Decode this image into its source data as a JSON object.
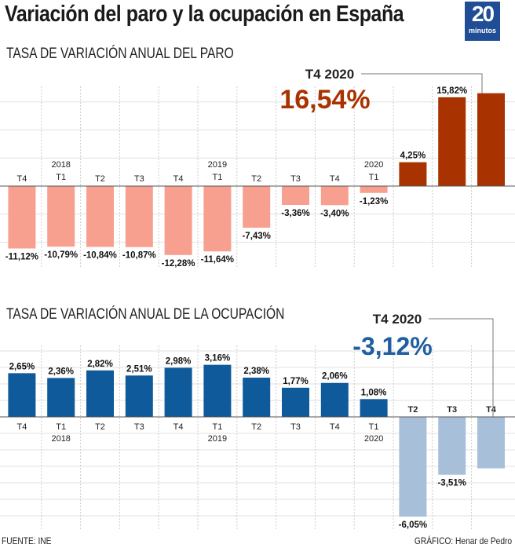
{
  "title": "Variación del paro y la ocupación en España",
  "logo": {
    "number": "20",
    "word": "minutos"
  },
  "footer": {
    "source": "FUENTE: INE",
    "credit": "GRÁFICO: Henar de Pedro"
  },
  "chart_data": [
    {
      "type": "bar",
      "title": "TASA DE VARIACIÓN ANUAL DEL PARO",
      "categories": [
        "T4",
        "T1 2018",
        "T2",
        "T3",
        "T4",
        "T1 2019",
        "T2",
        "T3",
        "T4",
        "T1 2020",
        "T2",
        "T3",
        "T4"
      ],
      "tick_labels": [
        [
          "T4",
          ""
        ],
        [
          "T1",
          "2018"
        ],
        [
          "T2",
          ""
        ],
        [
          "T3",
          ""
        ],
        [
          "T4",
          ""
        ],
        [
          "T1",
          "2019"
        ],
        [
          "T2",
          ""
        ],
        [
          "T3",
          ""
        ],
        [
          "T4",
          ""
        ],
        [
          "T1",
          "2020"
        ],
        [
          "T2",
          ""
        ],
        [
          "T3",
          ""
        ],
        [
          "T4",
          ""
        ]
      ],
      "values": [
        -11.12,
        -10.79,
        -10.84,
        -10.87,
        -12.28,
        -11.64,
        -7.43,
        -3.36,
        -3.4,
        -1.23,
        4.25,
        15.82,
        16.54
      ],
      "labels": [
        "-11,12%",
        "-10,79%",
        "-10,84%",
        "-10,87%",
        "-12,28%",
        "-11,64%",
        "-7,43%",
        "-3,36%",
        "-3,40%",
        "-1,23%",
        "4,25%",
        "15,82%",
        ""
      ],
      "highlight": {
        "period": "T4 2020",
        "value": "16,54%"
      },
      "colors": {
        "past": "#f8a090",
        "recent": "#a83300"
      }
    },
    {
      "type": "bar",
      "title": "TASA DE VARIACIÓN ANUAL DE LA OCUPACIÓN",
      "categories": [
        "T4",
        "T1 2018",
        "T2",
        "T3",
        "T4",
        "T1 2019",
        "T2",
        "T3",
        "T4",
        "T1 2020",
        "T2",
        "T3",
        "T4"
      ],
      "tick_labels": [
        [
          "T4",
          ""
        ],
        [
          "T1",
          "2018"
        ],
        [
          "T2",
          ""
        ],
        [
          "T3",
          ""
        ],
        [
          "T4",
          ""
        ],
        [
          "T1",
          "2019"
        ],
        [
          "T2",
          ""
        ],
        [
          "T3",
          ""
        ],
        [
          "T4",
          ""
        ],
        [
          "T1",
          "2020"
        ],
        [
          "T2",
          ""
        ],
        [
          "T3",
          ""
        ],
        [
          "T4",
          ""
        ]
      ],
      "values": [
        2.65,
        2.36,
        2.82,
        2.51,
        2.98,
        3.16,
        2.38,
        1.77,
        2.06,
        1.08,
        -6.05,
        -3.51,
        -3.12
      ],
      "labels": [
        "2,65%",
        "2,36%",
        "2,82%",
        "2,51%",
        "2,98%",
        "3,16%",
        "2,38%",
        "1,77%",
        "2,06%",
        "1,08%",
        "-6,05%",
        "-3,51%",
        ""
      ],
      "highlight": {
        "period": "T4 2020",
        "value": "-3,12%"
      },
      "colors": {
        "past": "#0f5a9a",
        "recent": "#a8bfd9"
      }
    }
  ]
}
